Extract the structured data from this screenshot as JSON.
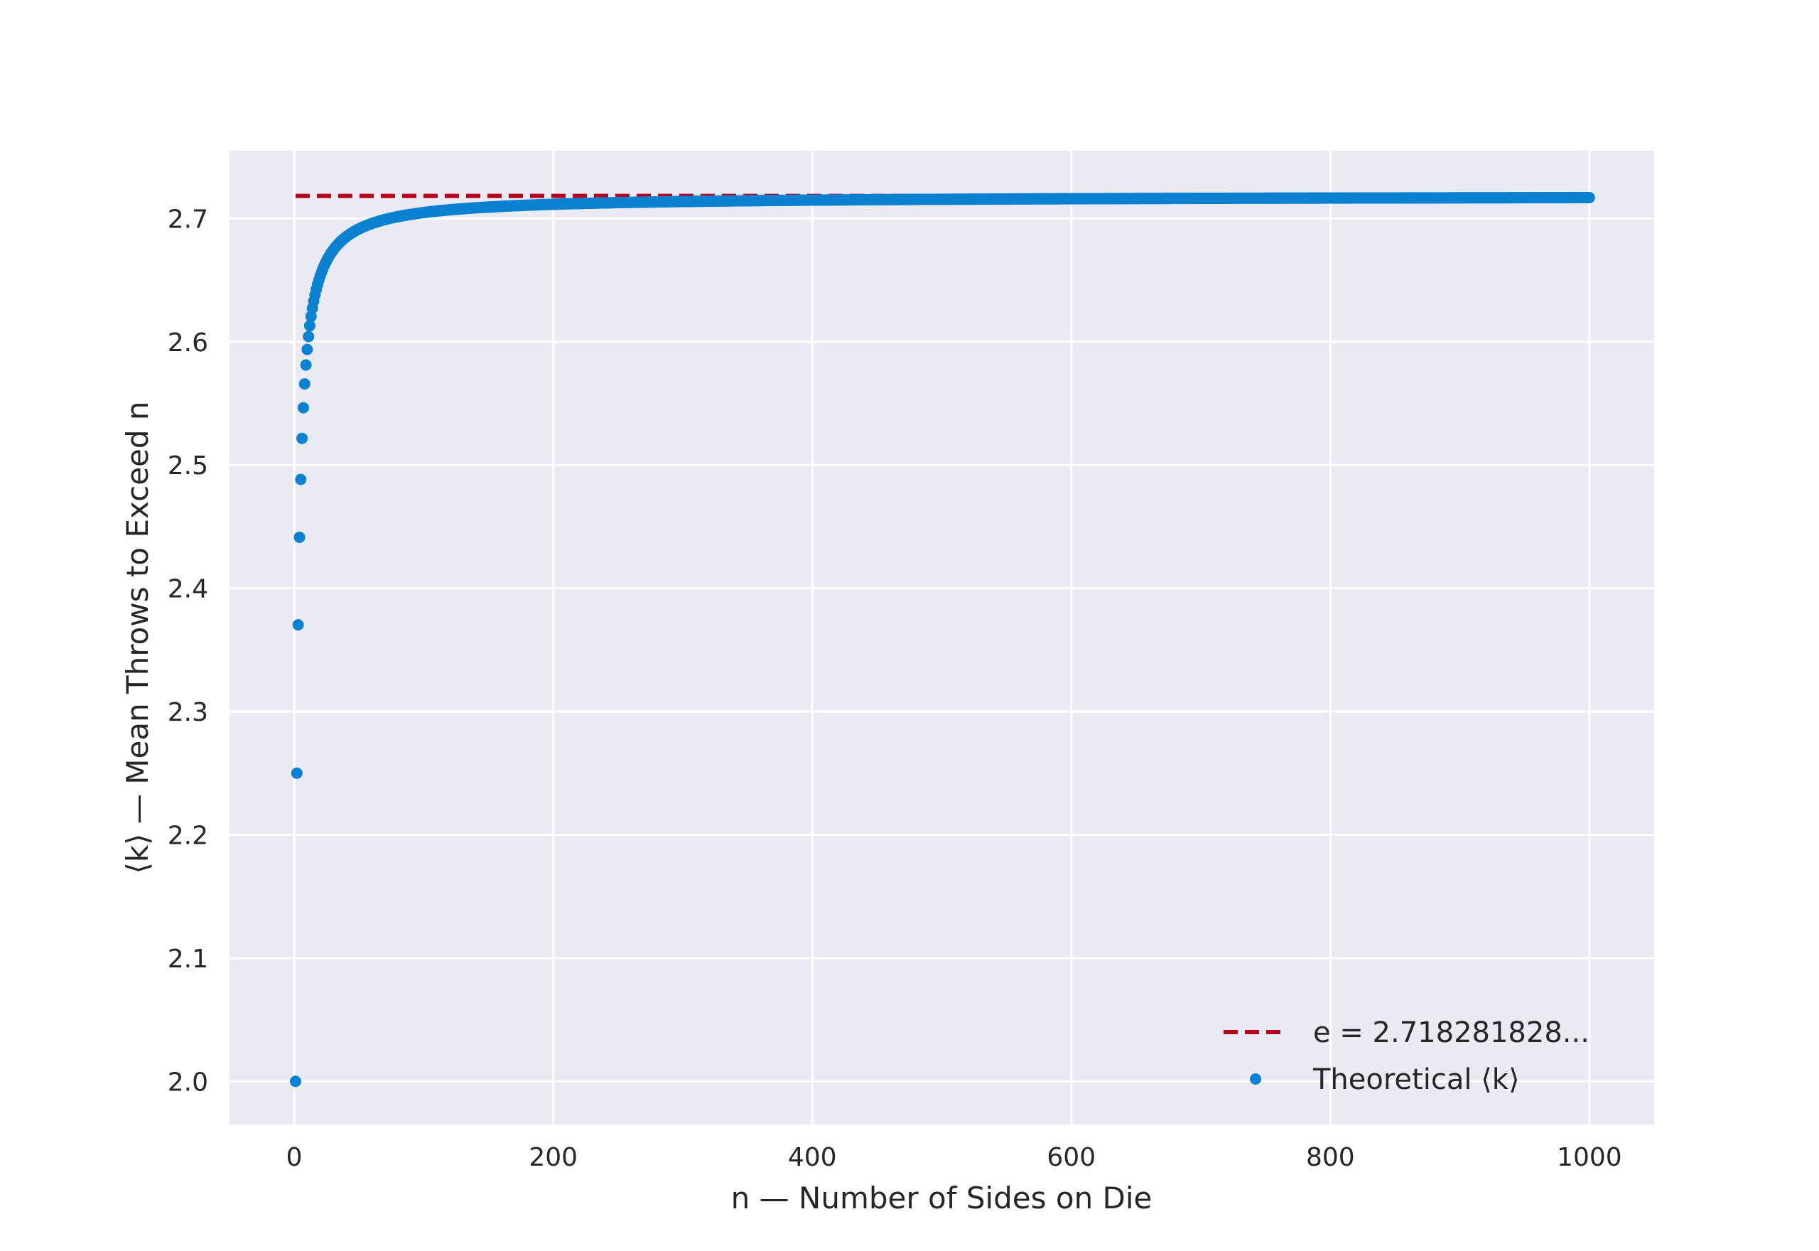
{
  "chart_data": {
    "type": "scatter",
    "xlabel": "n — Number of Sides on Die",
    "ylabel": "⟨k⟩ — Mean Throws to Exceed n",
    "xlim": [
      -50,
      1050
    ],
    "ylim": [
      1.965,
      2.755
    ],
    "x_ticks": [
      0,
      200,
      400,
      600,
      800,
      1000
    ],
    "y_ticks": [
      2.0,
      2.1,
      2.2,
      2.3,
      2.4,
      2.5,
      2.6,
      2.7
    ],
    "x_tick_labels": [
      "0",
      "200",
      "400",
      "600",
      "800",
      "1000"
    ],
    "y_tick_labels": [
      "2.0",
      "2.1",
      "2.2",
      "2.3",
      "2.4",
      "2.5",
      "2.6",
      "2.7"
    ],
    "grid": true,
    "legend_position": "bottom-right",
    "series": [
      {
        "name": "e = 2.718281828...",
        "kind": "dashed-line",
        "color": "#b5001f",
        "x": [
          1,
          1000
        ],
        "y": [
          2.718281828,
          2.718281828
        ]
      },
      {
        "name": "Theoretical ⟨k⟩",
        "kind": "points",
        "color": "#0a81d1",
        "formula": "(1 + 1/n)^n",
        "x_range": [
          1,
          1000
        ]
      }
    ]
  }
}
